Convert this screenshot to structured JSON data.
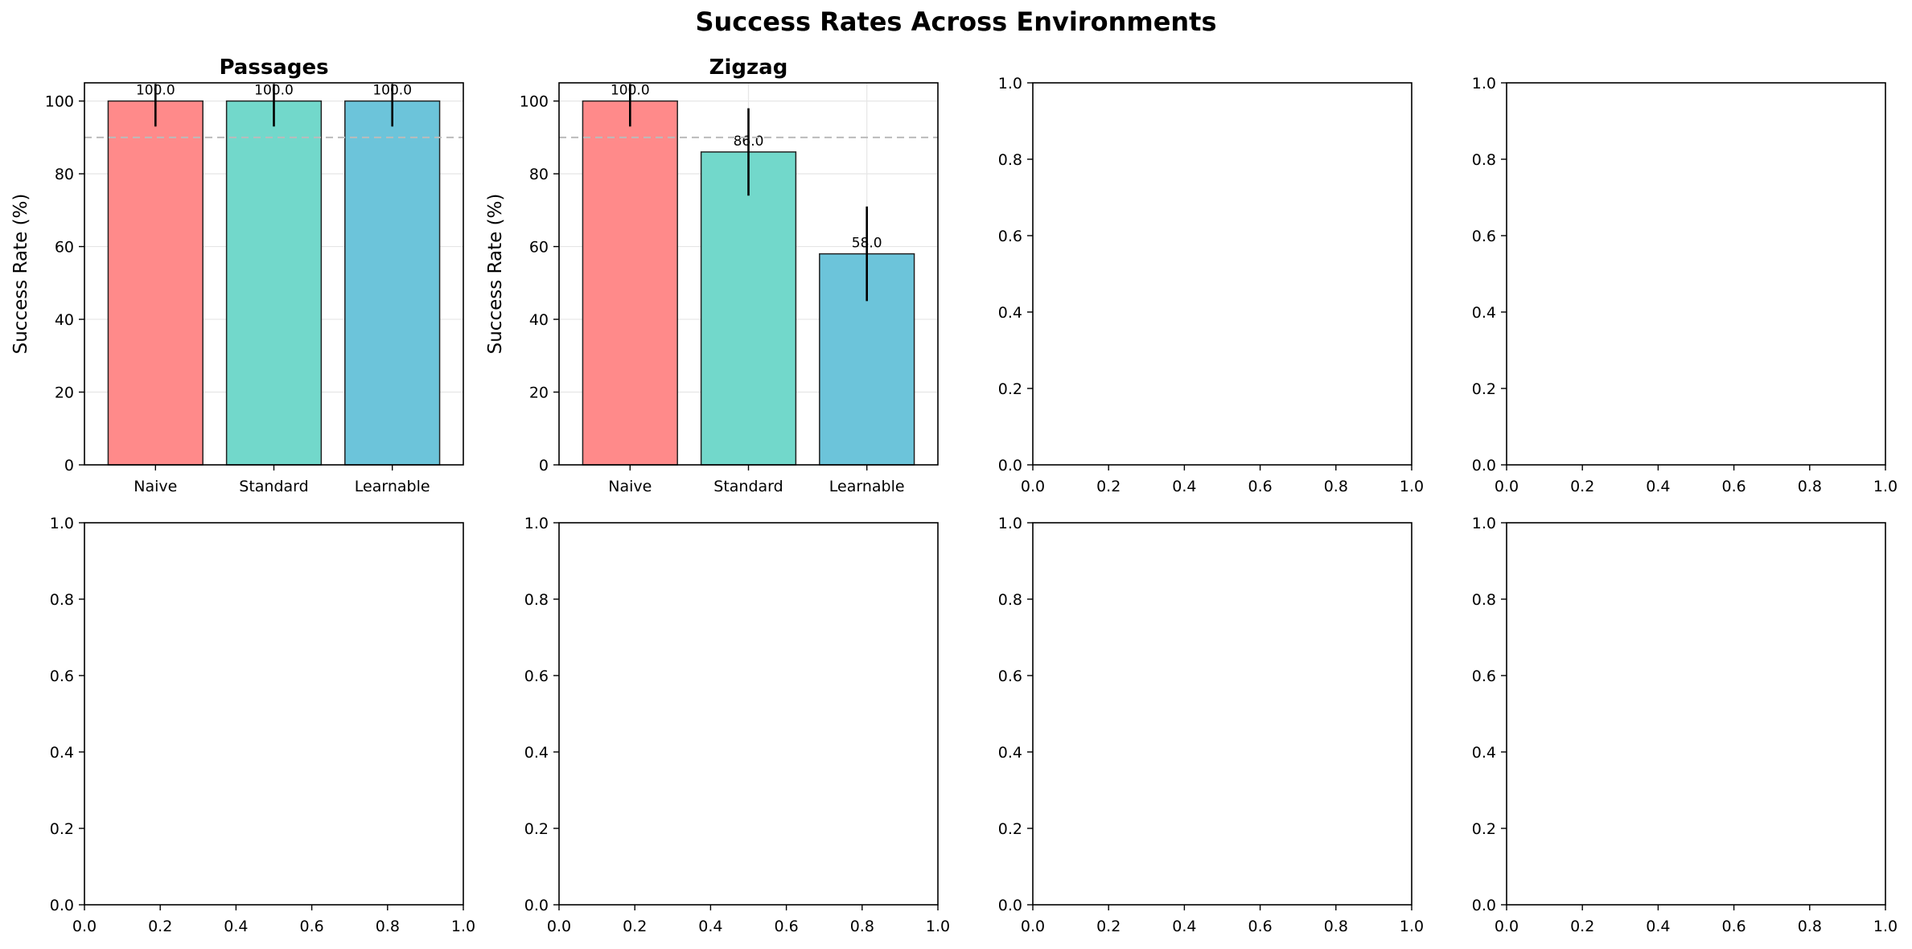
{
  "figure": {
    "title": "Success Rates Across Environments"
  },
  "colors": {
    "naive": "#ff8a8a",
    "standard": "#72d8cb",
    "learnable": "#6cc4da",
    "edge": "#222222",
    "grid": "#e6e6e6",
    "reference_line": "#bbbbbb"
  },
  "chart_data": [
    {
      "type": "bar",
      "title": "Passages",
      "ylabel": "Success Rate (%)",
      "categories": [
        "Naive",
        "Standard",
        "Learnable"
      ],
      "values": [
        100.0,
        100.0,
        100.0
      ],
      "errors": [
        7,
        7,
        7
      ],
      "value_labels": [
        "100.0",
        "100.0",
        "100.0"
      ],
      "ylim": [
        0,
        105
      ],
      "yticks": [
        0,
        20,
        40,
        60,
        80,
        100
      ],
      "reference_line": 90,
      "grid": true
    },
    {
      "type": "bar",
      "title": "Zigzag",
      "ylabel": "Success Rate (%)",
      "categories": [
        "Naive",
        "Standard",
        "Learnable"
      ],
      "values": [
        100.0,
        86.0,
        58.0
      ],
      "errors": [
        7,
        12,
        13
      ],
      "value_labels": [
        "100.0",
        "86.0",
        "58.0"
      ],
      "ylim": [
        0,
        105
      ],
      "yticks": [
        0,
        20,
        40,
        60,
        80,
        100
      ],
      "reference_line": 90,
      "grid": true
    },
    {
      "type": "empty",
      "xlim": [
        0,
        1
      ],
      "ylim": [
        0,
        1
      ],
      "xticks": [
        "0.0",
        "0.2",
        "0.4",
        "0.6",
        "0.8",
        "1.0"
      ],
      "yticks": [
        "0.0",
        "0.2",
        "0.4",
        "0.6",
        "0.8",
        "1.0"
      ]
    },
    {
      "type": "empty",
      "xlim": [
        0,
        1
      ],
      "ylim": [
        0,
        1
      ],
      "xticks": [
        "0.0",
        "0.2",
        "0.4",
        "0.6",
        "0.8",
        "1.0"
      ],
      "yticks": [
        "0.0",
        "0.2",
        "0.4",
        "0.6",
        "0.8",
        "1.0"
      ]
    },
    {
      "type": "empty",
      "xlim": [
        0,
        1
      ],
      "ylim": [
        0,
        1
      ],
      "xticks": [
        "0.0",
        "0.2",
        "0.4",
        "0.6",
        "0.8",
        "1.0"
      ],
      "yticks": [
        "0.0",
        "0.2",
        "0.4",
        "0.6",
        "0.8",
        "1.0"
      ]
    },
    {
      "type": "empty",
      "xlim": [
        0,
        1
      ],
      "ylim": [
        0,
        1
      ],
      "xticks": [
        "0.0",
        "0.2",
        "0.4",
        "0.6",
        "0.8",
        "1.0"
      ],
      "yticks": [
        "0.0",
        "0.2",
        "0.4",
        "0.6",
        "0.8",
        "1.0"
      ]
    },
    {
      "type": "empty",
      "xlim": [
        0,
        1
      ],
      "ylim": [
        0,
        1
      ],
      "xticks": [
        "0.0",
        "0.2",
        "0.4",
        "0.6",
        "0.8",
        "1.0"
      ],
      "yticks": [
        "0.0",
        "0.2",
        "0.4",
        "0.6",
        "0.8",
        "1.0"
      ]
    },
    {
      "type": "empty",
      "xlim": [
        0,
        1
      ],
      "ylim": [
        0,
        1
      ],
      "xticks": [
        "0.0",
        "0.2",
        "0.4",
        "0.6",
        "0.8",
        "1.0"
      ],
      "yticks": [
        "0.0",
        "0.2",
        "0.4",
        "0.6",
        "0.8",
        "1.0"
      ]
    }
  ]
}
